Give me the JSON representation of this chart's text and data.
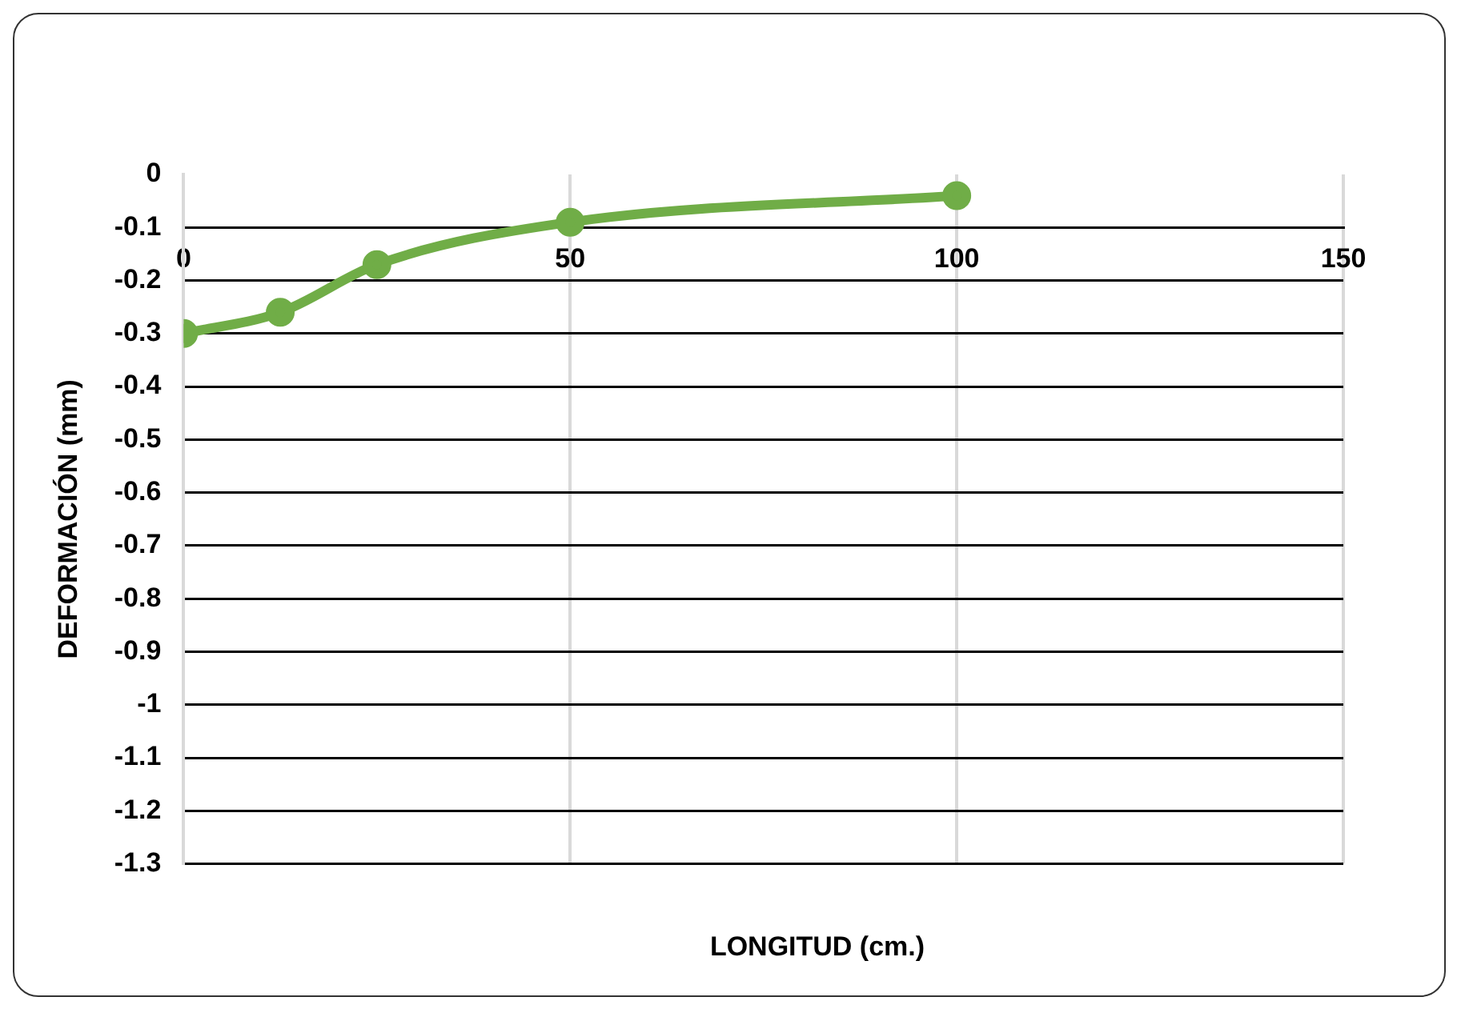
{
  "chart_data": {
    "type": "line",
    "xlabel": "LONGITUD (cm.)",
    "ylabel": "DEFORMACIÓN (mm)",
    "x": [
      0,
      12.5,
      25,
      50,
      100
    ],
    "series": [
      {
        "color": "#70ad47",
        "values": [
          -0.3,
          -0.26,
          -0.17,
          -0.09,
          -0.04
        ]
      }
    ],
    "xlim": [
      0,
      150
    ],
    "xticks": [
      0,
      50,
      100,
      150
    ],
    "ylim": [
      -1.3,
      0
    ],
    "yticks": [
      0,
      -0.1,
      -0.2,
      -0.3,
      -0.4,
      -0.5,
      -0.6,
      -0.7,
      -0.8,
      -0.9,
      -1,
      -1.1,
      -1.2,
      -1.3
    ],
    "grid": true,
    "marker": "circle",
    "line_style": "solid",
    "legend": false
  }
}
